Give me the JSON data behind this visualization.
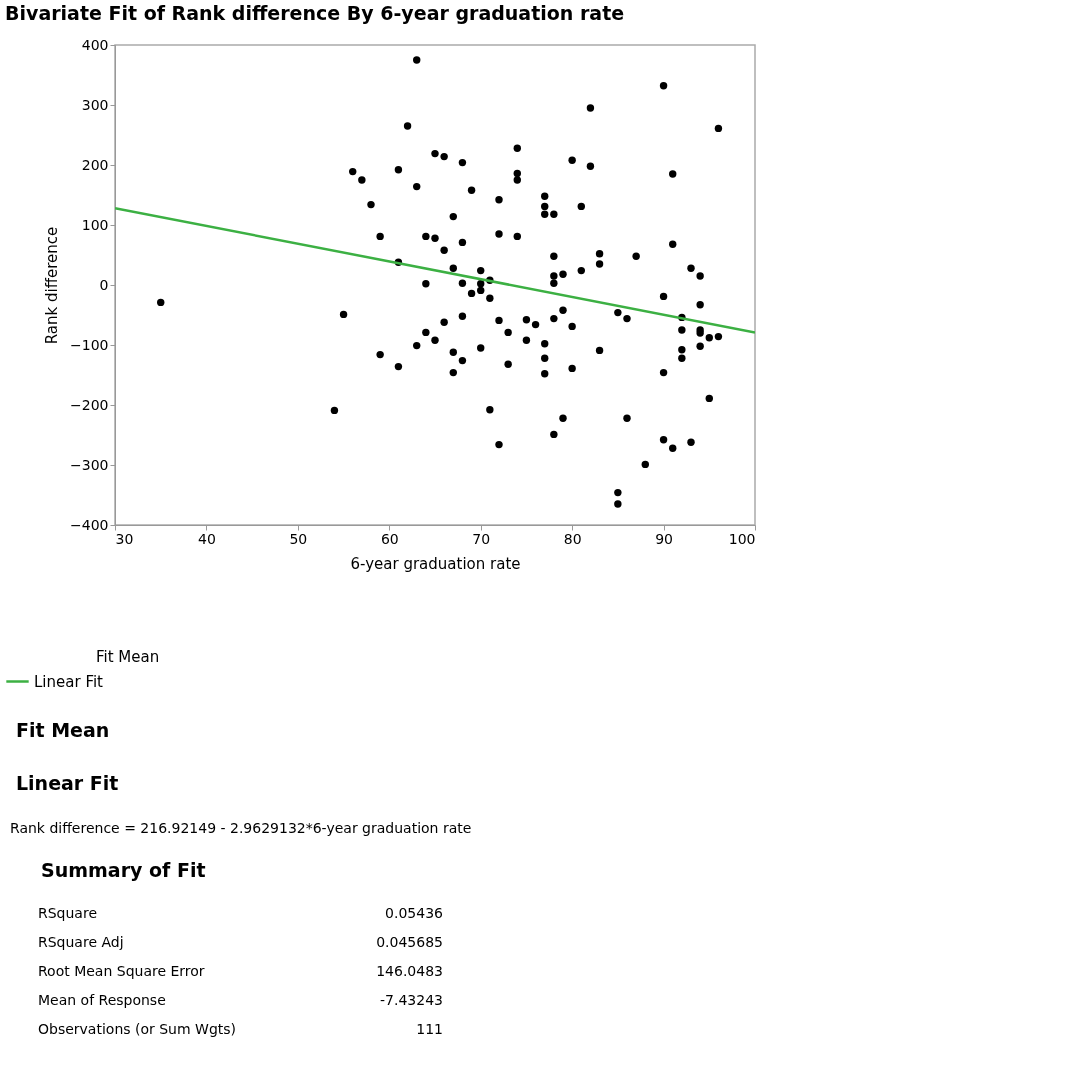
{
  "chart_data": {
    "type": "scatter",
    "title": "Bivariate Fit of Rank difference By 6-year graduation rate",
    "xlabel": "6-year graduation rate",
    "ylabel": "Rank difference",
    "xlim": [
      30,
      100
    ],
    "xticks": [
      30,
      40,
      50,
      60,
      70,
      80,
      90,
      100
    ],
    "ylim": [
      -400,
      400
    ],
    "yticks": [
      -400,
      -300,
      -200,
      -100,
      0,
      100,
      200,
      300,
      400
    ],
    "grid": false,
    "legend": "bottom left",
    "series": [
      {
        "color": "#000000",
        "marker": "circle",
        "x": [
          35,
          54,
          55,
          56,
          57,
          58,
          59,
          59,
          61,
          61,
          61,
          62,
          63,
          63,
          63,
          64,
          64,
          64,
          65,
          65,
          65,
          66,
          66,
          66,
          67,
          67,
          67,
          67,
          68,
          68,
          68,
          68,
          68,
          69,
          69,
          70,
          70,
          70,
          70,
          71,
          71,
          71,
          72,
          72,
          72,
          72,
          73,
          73,
          74,
          74,
          74,
          74,
          75,
          75,
          76,
          77,
          77,
          77,
          77,
          77,
          77,
          78,
          78,
          78,
          78,
          78,
          78,
          79,
          79,
          79,
          80,
          80,
          80,
          81,
          81,
          82,
          82,
          83,
          83,
          83,
          85,
          85,
          85,
          86,
          86,
          87,
          88,
          90,
          90,
          90,
          90,
          91,
          91,
          91,
          92,
          92,
          92,
          92,
          93,
          93,
          94,
          94,
          94,
          94,
          94,
          95,
          95,
          96,
          96
        ],
        "values": [
          -29,
          -209,
          -49,
          189,
          175,
          134,
          81,
          -116,
          192,
          38,
          -136,
          265,
          375,
          164,
          -101,
          81,
          2,
          -79,
          219,
          78,
          -92,
          214,
          58,
          -62,
          114,
          28,
          -112,
          -146,
          204,
          71,
          3,
          -52,
          -126,
          158,
          -14,
          24,
          2,
          -9,
          -105,
          8,
          -22,
          -208,
          142,
          85,
          -59,
          -266,
          -79,
          -132,
          228,
          186,
          175,
          81,
          -58,
          -92,
          -66,
          148,
          131,
          118,
          -98,
          -122,
          -148,
          118,
          48,
          15,
          3,
          -56,
          -249,
          18,
          -42,
          -222,
          208,
          -69,
          -139,
          131,
          24,
          295,
          198,
          52,
          35,
          -109,
          -46,
          -346,
          -365,
          -56,
          -222,
          48,
          -299,
          332,
          -19,
          -146,
          -258,
          185,
          68,
          -272,
          -54,
          -75,
          -108,
          -122,
          28,
          -262,
          15,
          -33,
          -75,
          -80,
          -102,
          -88,
          -189,
          261,
          -86
        ]
      },
      {
        "type": "line",
        "name": "Linear Fit",
        "color": "#3cb043",
        "line_style": "solid",
        "x": [
          30,
          100
        ],
        "values": [
          128,
          -79
        ]
      }
    ],
    "annotations": [
      "Fit Mean",
      "Fit Mean",
      "Linear Fit",
      "Rank difference = 216.92149 - 2.9629132*6-year graduation rate",
      "Summary of Fit",
      "RSquare",
      "0.05436",
      "RSquare Adj",
      "0.045685",
      "Root Mean Square Error",
      "146.0483",
      "Mean of Response",
      "-7.43243",
      "Observations (or Sum Wgts)",
      "111"
    ]
  }
}
